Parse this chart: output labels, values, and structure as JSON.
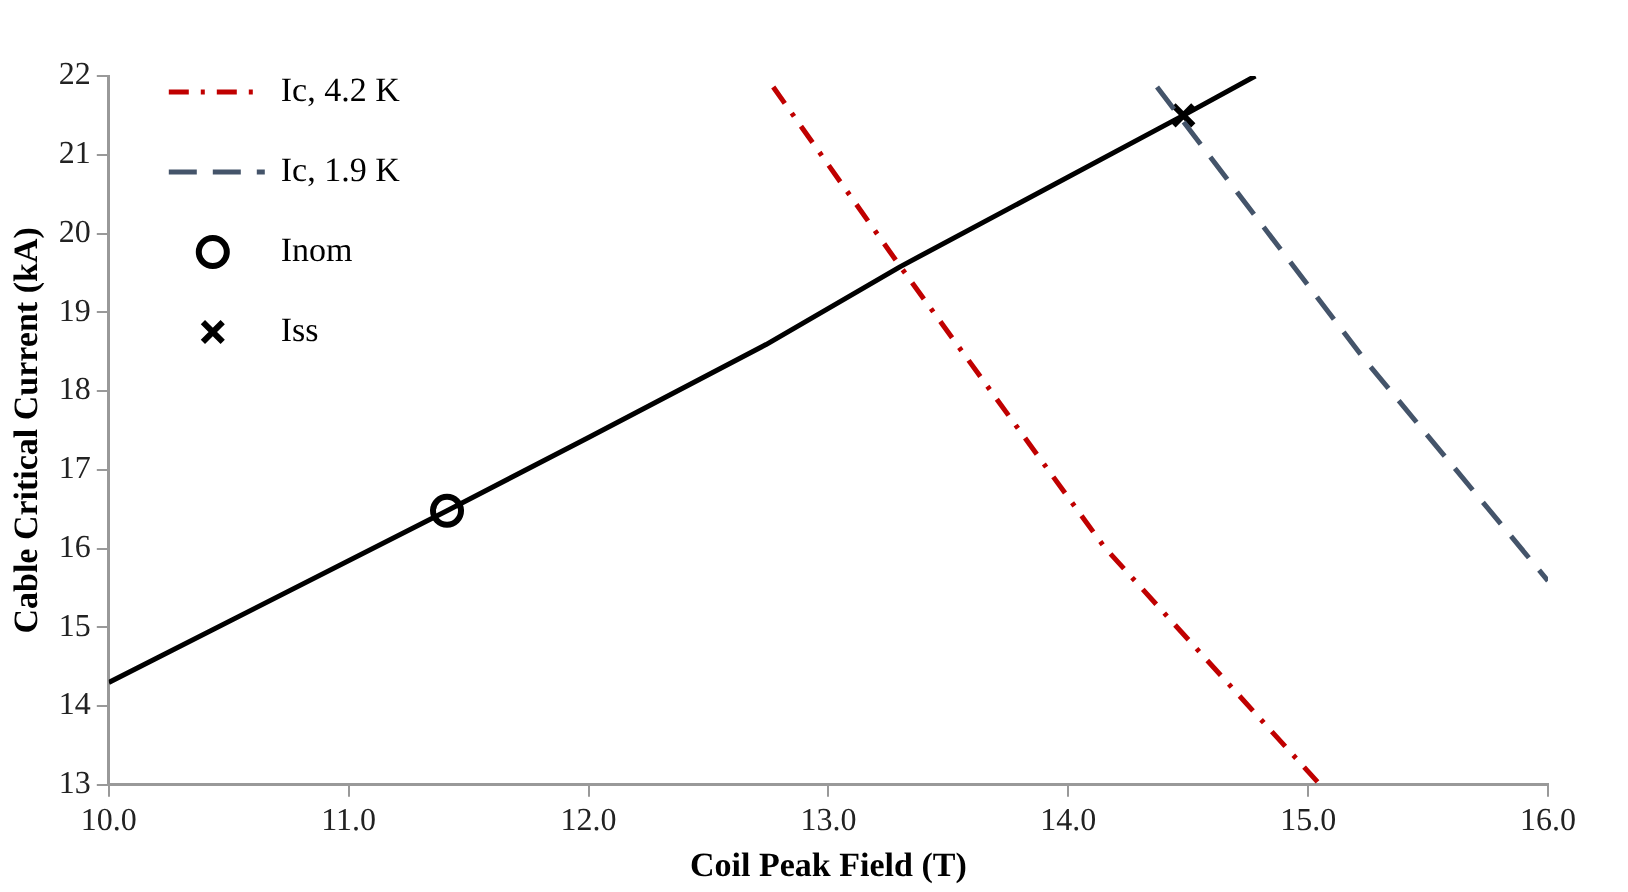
{
  "chart_data": {
    "type": "line",
    "xlabel": "Coil Peak Field (T)",
    "ylabel": "Cable Critical Current (kA)",
    "xlim": [
      10,
      16
    ],
    "xticks": [
      {
        "value": 10,
        "label": "10.0"
      },
      {
        "value": 11,
        "label": "11.0"
      },
      {
        "value": 12,
        "label": "12.0"
      },
      {
        "value": 13,
        "label": "13.0"
      },
      {
        "value": 14,
        "label": "14.0"
      },
      {
        "value": 15,
        "label": "15.0"
      },
      {
        "value": 16,
        "label": "16.0"
      }
    ],
    "ylim": [
      13,
      22
    ],
    "yticks": [
      13,
      14,
      15,
      16,
      17,
      18,
      19,
      20,
      21,
      22
    ],
    "grid": false,
    "legend": "top left",
    "series": [
      {
        "name": "Ic, 4.2 K",
        "color": "#c00000",
        "line_style": "dashdot",
        "marker": "none",
        "x": [
          12.77,
          13.3,
          14.15,
          15.05
        ],
        "values": [
          21.86,
          19.58,
          16.02,
          13.0
        ]
      },
      {
        "name": "Ic, 1.9 K",
        "color": "#44546a",
        "line_style": "dashed",
        "marker": "none",
        "x": [
          14.37,
          15.23,
          16.0
        ],
        "values": [
          21.86,
          18.42,
          15.59
        ]
      },
      {
        "color": "#000000",
        "line_style": "solid",
        "marker": "none",
        "x": [
          10,
          11.41,
          12,
          12.74,
          13.3,
          14.48,
          14.78
        ],
        "values": [
          14.3,
          16.48,
          17.41,
          18.59,
          19.58,
          21.5,
          22.0
        ]
      },
      {
        "type": "scatter",
        "name": "Inom",
        "color": "#000000",
        "marker": "circle",
        "x": [
          11.41
        ],
        "values": [
          16.48
        ]
      },
      {
        "type": "scatter",
        "name": "Iss",
        "color": "#000000",
        "marker": "cross",
        "x": [
          14.48
        ],
        "values": [
          21.5
        ]
      }
    ]
  }
}
